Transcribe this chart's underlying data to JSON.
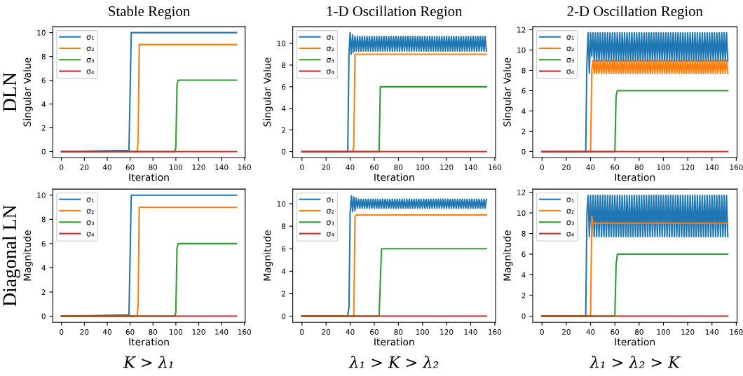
{
  "chart_data": [
    {
      "type": "line",
      "title": "Stable Region",
      "ylabel": "Singular Value",
      "xlabel": "Iteration",
      "annotations": [
        "DLN"
      ],
      "xlim": [
        -7.65,
        160.65
      ],
      "xticks": [
        0,
        20,
        40,
        60,
        80,
        100,
        120,
        140,
        160
      ],
      "ylim": [
        -0.5,
        10.5
      ],
      "yticks": [
        0,
        2,
        4,
        6,
        8,
        10
      ],
      "legend": "top left",
      "series": [
        {
          "name": "σ₁",
          "color": "#1f77b4",
          "x": [
            0,
            59,
            60,
            61,
            153
          ],
          "values": [
            0,
            0.1,
            5,
            10,
            10
          ]
        },
        {
          "name": "σ₂",
          "color": "#ff7f0e",
          "x": [
            0,
            66,
            67,
            68,
            153
          ],
          "values": [
            0,
            0,
            0.8,
            9,
            9
          ]
        },
        {
          "name": "σ₃",
          "color": "#2ca02c",
          "x": [
            0,
            99,
            100,
            101,
            102,
            153
          ],
          "values": [
            0,
            0,
            0.3,
            5.6,
            6,
            6
          ]
        },
        {
          "name": "σ₄",
          "color": "#d62728",
          "x": [
            0,
            153
          ],
          "values": [
            0,
            0
          ]
        }
      ]
    },
    {
      "type": "line",
      "title": "1-D Oscillation Region",
      "ylabel": "Singular Value",
      "xlabel": "Iteration",
      "xlim": [
        -7.65,
        160.65
      ],
      "xticks": [
        0,
        20,
        40,
        60,
        80,
        100,
        120,
        140,
        160
      ],
      "ylim": [
        -0.55,
        11.55
      ],
      "yticks": [
        0,
        2,
        4,
        6,
        8,
        10
      ],
      "legend": "top left",
      "series": [
        {
          "name": "σ₁",
          "color": "#1f77b4",
          "x": [
            0,
            38,
            39,
            40,
            41,
            42,
            43,
            44,
            45,
            46,
            47,
            48,
            49,
            50,
            51,
            52,
            53,
            54,
            55,
            56,
            57,
            58,
            59,
            60,
            61,
            62,
            63,
            64,
            65,
            66,
            67,
            68,
            69,
            70,
            71,
            72,
            73,
            74,
            75,
            76,
            77,
            78,
            79,
            80,
            81,
            82,
            83,
            84,
            85,
            86,
            87,
            88,
            89,
            90,
            91,
            92,
            93,
            94,
            95,
            96,
            97,
            98,
            99,
            100,
            101,
            102,
            103,
            104,
            105,
            106,
            107,
            108,
            109,
            110,
            111,
            112,
            113,
            114,
            115,
            116,
            117,
            118,
            119,
            120,
            121,
            122,
            123,
            124,
            125,
            126,
            127,
            128,
            129,
            130,
            131,
            132,
            133,
            134,
            135,
            136,
            137,
            138,
            139,
            140,
            141,
            142,
            143,
            144,
            145,
            146,
            147,
            148,
            149,
            150,
            151,
            152,
            153
          ],
          "values": [
            0,
            0,
            9.0,
            11.0,
            9.0,
            10.8,
            9.2,
            10.65,
            9.3,
            10.65,
            9.3,
            10.65,
            9.3,
            10.65,
            9.3,
            10.65,
            9.3,
            10.65,
            9.3,
            10.65,
            9.3,
            10.65,
            9.3,
            10.65,
            9.3,
            10.65,
            9.3,
            10.65,
            9.3,
            10.65,
            9.3,
            10.65,
            9.3,
            10.65,
            9.3,
            10.65,
            9.3,
            10.65,
            9.3,
            10.65,
            9.3,
            10.65,
            9.3,
            10.65,
            9.3,
            10.65,
            9.3,
            10.65,
            9.3,
            10.65,
            9.3,
            10.65,
            9.3,
            10.65,
            9.3,
            10.65,
            9.3,
            10.65,
            9.3,
            10.65,
            9.3,
            10.65,
            9.3,
            10.65,
            9.3,
            10.65,
            9.3,
            10.65,
            9.3,
            10.65,
            9.3,
            10.65,
            9.3,
            10.65,
            9.3,
            10.65,
            9.3,
            10.65,
            9.3,
            10.65,
            9.3,
            10.65,
            9.3,
            10.65,
            9.3,
            10.65,
            9.3,
            10.65,
            9.3,
            10.65,
            9.3,
            10.65,
            9.3,
            10.65,
            9.3,
            10.65,
            9.3,
            10.65,
            9.3,
            10.65,
            9.3,
            10.65,
            9.3,
            10.65,
            9.3,
            10.65,
            9.3,
            10.65,
            9.3,
            10.65,
            9.3,
            10.65,
            9.3,
            10.65,
            9.3,
            10.65,
            9.3
          ]
        },
        {
          "name": "σ₂",
          "color": "#ff7f0e",
          "x": [
            0,
            42,
            43,
            44,
            153
          ],
          "values": [
            0,
            0,
            0.5,
            9,
            9
          ]
        },
        {
          "name": "σ₃",
          "color": "#2ca02c",
          "x": [
            0,
            64,
            65,
            153
          ],
          "values": [
            0,
            0,
            6,
            6
          ]
        },
        {
          "name": "σ₄",
          "color": "#d62728",
          "x": [
            0,
            153
          ],
          "values": [
            0,
            0
          ]
        }
      ]
    },
    {
      "type": "line",
      "title": "2-D Oscillation Region",
      "ylabel": "Singular Value",
      "xlabel": "Iteration",
      "xlim": [
        -7.65,
        160.65
      ],
      "xticks": [
        0,
        20,
        40,
        60,
        80,
        100,
        120,
        140,
        160
      ],
      "ylim": [
        -0.59,
        12.3
      ],
      "yticks": [
        0,
        2,
        4,
        6,
        8,
        10,
        12
      ],
      "legend": "top left",
      "series": [
        {
          "name": "σ₁",
          "color": "#1f77b4",
          "x": [
            0,
            36,
            37,
            38,
            39,
            40,
            41,
            42,
            43,
            44,
            45,
            46,
            47,
            48,
            49,
            50,
            51,
            52,
            53,
            54,
            55,
            56,
            57,
            58,
            59,
            60,
            61,
            62,
            63,
            64,
            65,
            66,
            67,
            68,
            69,
            70,
            71,
            72,
            73,
            74,
            75,
            76,
            77,
            78,
            79,
            80,
            81,
            82,
            83,
            84,
            85,
            86,
            87,
            88,
            89,
            90,
            91,
            92,
            93,
            94,
            95,
            96,
            97,
            98,
            99,
            100,
            101,
            102,
            103,
            104,
            105,
            106,
            107,
            108,
            109,
            110,
            111,
            112,
            113,
            114,
            115,
            116,
            117,
            118,
            119,
            120,
            121,
            122,
            123,
            124,
            125,
            126,
            127,
            128,
            129,
            130,
            131,
            132,
            133,
            134,
            135,
            136,
            137,
            138,
            139,
            140,
            141,
            142,
            143,
            144,
            145,
            146,
            147,
            148,
            149,
            150,
            151,
            152,
            153
          ],
          "values": [
            0,
            0,
            9.0,
            11.7,
            7.7,
            11.7,
            9.4,
            11.7,
            8.9,
            11.7,
            8.9,
            11.7,
            8.9,
            11.7,
            8.9,
            11.7,
            8.9,
            11.7,
            8.9,
            11.7,
            8.9,
            11.7,
            8.9,
            11.7,
            8.9,
            11.7,
            8.9,
            11.7,
            8.9,
            11.7,
            8.9,
            11.7,
            8.9,
            11.7,
            8.9,
            11.7,
            8.9,
            11.7,
            8.9,
            11.7,
            8.9,
            11.7,
            8.9,
            11.7,
            8.9,
            11.7,
            8.9,
            11.7,
            8.9,
            11.7,
            8.9,
            11.7,
            8.9,
            11.7,
            8.9,
            11.7,
            8.9,
            11.7,
            8.9,
            11.7,
            8.9,
            11.7,
            8.9,
            11.7,
            8.9,
            11.7,
            8.9,
            11.7,
            8.9,
            11.7,
            8.9,
            11.7,
            8.9,
            11.7,
            8.9,
            11.7,
            8.9,
            11.7,
            8.9,
            11.7,
            8.9,
            11.7,
            8.9,
            11.7,
            8.9,
            11.7,
            8.9,
            11.7,
            8.9,
            11.7,
            8.9,
            11.7,
            8.9,
            11.7,
            8.9,
            11.7,
            8.9,
            11.7,
            8.9,
            11.7,
            8.9,
            11.7,
            8.9,
            11.7,
            8.9,
            11.7,
            8.9,
            11.7,
            8.9,
            11.7,
            8.9,
            11.7,
            8.9,
            11.7,
            8.9,
            11.7,
            8.9,
            11.7,
            8.9
          ]
        },
        {
          "name": "σ₂",
          "color": "#ff7f0e",
          "x": [
            0,
            40,
            41,
            42,
            43,
            44,
            45,
            46,
            47,
            48,
            49,
            50,
            51,
            52,
            53,
            54,
            55,
            56,
            57,
            58,
            59,
            60,
            61,
            62,
            63,
            64,
            65,
            66,
            67,
            68,
            69,
            70,
            71,
            72,
            73,
            74,
            75,
            76,
            77,
            78,
            79,
            80,
            81,
            82,
            83,
            84,
            85,
            86,
            87,
            88,
            89,
            90,
            91,
            92,
            93,
            94,
            95,
            96,
            97,
            98,
            99,
            100,
            101,
            102,
            103,
            104,
            105,
            106,
            107,
            108,
            109,
            110,
            111,
            112,
            113,
            114,
            115,
            116,
            117,
            118,
            119,
            120,
            121,
            122,
            123,
            124,
            125,
            126,
            127,
            128,
            129,
            130,
            131,
            132,
            133,
            134,
            135,
            136,
            137,
            138,
            139,
            140,
            141,
            142,
            143,
            144,
            145,
            146,
            147,
            148,
            149,
            150,
            151,
            152,
            153
          ],
          "values": [
            0,
            0,
            8.0,
            9.0,
            7.7,
            9.0,
            7.7,
            9.0,
            7.7,
            9.0,
            7.7,
            9.0,
            7.7,
            9.0,
            7.7,
            9.0,
            7.7,
            9.0,
            7.7,
            9.0,
            7.7,
            9.0,
            7.7,
            9.0,
            7.7,
            9.0,
            7.7,
            9.0,
            7.7,
            9.0,
            7.7,
            9.0,
            7.7,
            9.0,
            7.7,
            9.0,
            7.7,
            9.0,
            7.7,
            9.0,
            7.7,
            9.0,
            7.7,
            9.0,
            7.7,
            9.0,
            7.7,
            9.0,
            7.7,
            9.0,
            7.7,
            9.0,
            7.7,
            9.0,
            7.7,
            9.0,
            7.7,
            9.0,
            7.7,
            9.0,
            7.7,
            9.0,
            7.7,
            9.0,
            7.7,
            9.0,
            7.7,
            9.0,
            7.7,
            9.0,
            7.7,
            9.0,
            7.7,
            9.0,
            7.7,
            9.0,
            7.7,
            9.0,
            7.7,
            9.0,
            7.7,
            9.0,
            7.7,
            9.0,
            7.7,
            9.0,
            7.7,
            9.0,
            7.7,
            9.0,
            7.7,
            9.0,
            7.7,
            9.0,
            7.7,
            9.0,
            7.7,
            9.0,
            7.7,
            9.0,
            7.7,
            9.0,
            7.7,
            9.0,
            7.7,
            9.0,
            7.7,
            9.0,
            7.7,
            9.0,
            7.7,
            9.0,
            7.7,
            9.0,
            7.7
          ]
        },
        {
          "name": "σ₃",
          "color": "#2ca02c",
          "x": [
            0,
            60,
            61,
            62,
            153
          ],
          "values": [
            0,
            0,
            5.5,
            6,
            6
          ]
        },
        {
          "name": "σ₄",
          "color": "#d62728",
          "x": [
            0,
            153
          ],
          "values": [
            0,
            0
          ]
        }
      ]
    },
    {
      "type": "line",
      "ylabel": "Magnitude",
      "xlabel": "Iteration",
      "annotations": [
        "Diagonal LN",
        "K > λ₁"
      ],
      "xlim": [
        -7.65,
        160.65
      ],
      "xticks": [
        0,
        20,
        40,
        60,
        80,
        100,
        120,
        140,
        160
      ],
      "ylim": [
        -0.5,
        10.5
      ],
      "yticks": [
        0,
        2,
        4,
        6,
        8,
        10
      ],
      "legend": "top left",
      "series": [
        {
          "name": "σ₁",
          "color": "#1f77b4",
          "x": [
            0,
            59,
            60,
            61,
            153
          ],
          "values": [
            0,
            0.1,
            5,
            10,
            10
          ]
        },
        {
          "name": "σ₂",
          "color": "#ff7f0e",
          "x": [
            0,
            66,
            67,
            68,
            153
          ],
          "values": [
            0,
            0,
            0.8,
            9,
            9
          ]
        },
        {
          "name": "σ₃",
          "color": "#2ca02c",
          "x": [
            0,
            99,
            100,
            101,
            102,
            153
          ],
          "values": [
            0,
            0,
            0.3,
            5.6,
            6,
            6
          ]
        },
        {
          "name": "σ₄",
          "color": "#d62728",
          "x": [
            0,
            153
          ],
          "values": [
            0,
            0
          ]
        }
      ]
    },
    {
      "type": "line",
      "ylabel": "Magnitude",
      "xlabel": "Iteration",
      "annotations": [
        "λ₁ > K > λ₂"
      ],
      "xlim": [
        -7.65,
        160.65
      ],
      "xticks": [
        0,
        20,
        40,
        60,
        80,
        100,
        120,
        140,
        160
      ],
      "ylim": [
        -0.54,
        11.3
      ],
      "yticks": [
        0,
        2,
        4,
        6,
        8,
        10
      ],
      "legend": "top left",
      "series": [
        {
          "name": "σ₁",
          "color": "#1f77b4",
          "x": [
            0,
            38,
            39,
            40,
            41,
            42,
            43,
            44,
            45,
            46,
            47,
            48,
            49,
            50,
            51,
            52,
            53,
            54,
            55,
            56,
            57,
            58,
            59,
            60,
            61,
            62,
            63,
            64,
            65,
            66,
            67,
            68,
            69,
            70,
            71,
            72,
            73,
            74,
            75,
            76,
            77,
            78,
            79,
            80,
            81,
            82,
            83,
            84,
            85,
            86,
            87,
            88,
            89,
            90,
            91,
            92,
            93,
            94,
            95,
            96,
            97,
            98,
            99,
            100,
            101,
            102,
            103,
            104,
            105,
            106,
            107,
            108,
            109,
            110,
            111,
            112,
            113,
            114,
            115,
            116,
            117,
            118,
            119,
            120,
            121,
            122,
            123,
            124,
            125,
            126,
            127,
            128,
            129,
            130,
            131,
            132,
            133,
            134,
            135,
            136,
            137,
            138,
            139,
            140,
            141,
            142,
            143,
            144,
            145,
            146,
            147,
            148,
            149,
            150,
            151,
            152,
            153
          ],
          "values": [
            0,
            0,
            0.8,
            9.2,
            10.7,
            9.3,
            10.6,
            9.4,
            10.5,
            9.6,
            10.4,
            9.6,
            10.4,
            9.6,
            10.4,
            9.6,
            10.4,
            9.6,
            10.4,
            9.6,
            10.4,
            9.6,
            10.4,
            9.6,
            10.4,
            9.6,
            10.4,
            9.6,
            10.4,
            9.6,
            10.4,
            9.6,
            10.4,
            9.6,
            10.4,
            9.6,
            10.4,
            9.6,
            10.4,
            9.6,
            10.4,
            9.6,
            10.4,
            9.6,
            10.4,
            9.6,
            10.4,
            9.6,
            10.4,
            9.6,
            10.4,
            9.6,
            10.4,
            9.6,
            10.4,
            9.6,
            10.4,
            9.6,
            10.4,
            9.6,
            10.4,
            9.6,
            10.4,
            9.6,
            10.4,
            9.6,
            10.4,
            9.6,
            10.4,
            9.6,
            10.4,
            9.6,
            10.4,
            9.6,
            10.4,
            9.6,
            10.4,
            9.6,
            10.4,
            9.6,
            10.4,
            9.6,
            10.4,
            9.6,
            10.4,
            9.6,
            10.4,
            9.6,
            10.4,
            9.6,
            10.4,
            9.6,
            10.4,
            9.6,
            10.4,
            9.6,
            10.4,
            9.6,
            10.4,
            9.6,
            10.4,
            9.6,
            10.4,
            9.6,
            10.4,
            9.6,
            10.4,
            9.6,
            10.4,
            9.6,
            10.4,
            9.6,
            10.4,
            9.6,
            10.4,
            9.6,
            10.4
          ]
        },
        {
          "name": "σ₂",
          "color": "#ff7f0e",
          "x": [
            0,
            43,
            44,
            45,
            153
          ],
          "values": [
            0,
            0,
            8.8,
            9,
            9
          ]
        },
        {
          "name": "σ₃",
          "color": "#2ca02c",
          "x": [
            0,
            64,
            66,
            153
          ],
          "values": [
            0,
            0,
            6,
            6
          ]
        },
        {
          "name": "σ₄",
          "color": "#d62728",
          "x": [
            0,
            153
          ],
          "values": [
            0,
            0
          ]
        }
      ]
    },
    {
      "type": "line",
      "ylabel": "Magnitude",
      "xlabel": "Iteration",
      "annotations": [
        "λ₁ > λ₂ > K"
      ],
      "xlim": [
        -7.65,
        160.65
      ],
      "xticks": [
        0,
        20,
        40,
        60,
        80,
        100,
        120,
        140,
        160
      ],
      "ylim": [
        -0.59,
        12.3
      ],
      "yticks": [
        0,
        2,
        4,
        6,
        8,
        10,
        12
      ],
      "legend": "top left",
      "series": [
        {
          "name": "σ₁",
          "color": "#1f77b4",
          "x": [
            0,
            36,
            37,
            38,
            39,
            40,
            41,
            42,
            43,
            44,
            45,
            46,
            47,
            48,
            49,
            50,
            51,
            52,
            53,
            54,
            55,
            56,
            57,
            58,
            59,
            60,
            61,
            62,
            63,
            64,
            65,
            66,
            67,
            68,
            69,
            70,
            71,
            72,
            73,
            74,
            75,
            76,
            77,
            78,
            79,
            80,
            81,
            82,
            83,
            84,
            85,
            86,
            87,
            88,
            89,
            90,
            91,
            92,
            93,
            94,
            95,
            96,
            97,
            98,
            99,
            100,
            101,
            102,
            103,
            104,
            105,
            106,
            107,
            108,
            109,
            110,
            111,
            112,
            113,
            114,
            115,
            116,
            117,
            118,
            119,
            120,
            121,
            122,
            123,
            124,
            125,
            126,
            127,
            128,
            129,
            130,
            131,
            132,
            133,
            134,
            135,
            136,
            137,
            138,
            139,
            140,
            141,
            142,
            143,
            144,
            145,
            146,
            147,
            148,
            149,
            150,
            151,
            152,
            153
          ],
          "values": [
            0,
            0,
            10.0,
            11.7,
            7.7,
            11.7,
            7.7,
            11.7,
            7.7,
            11.7,
            7.7,
            11.7,
            7.7,
            11.7,
            7.7,
            11.7,
            7.7,
            11.7,
            7.7,
            11.7,
            7.7,
            11.7,
            7.7,
            11.7,
            7.7,
            11.7,
            7.7,
            11.7,
            7.7,
            11.7,
            7.7,
            11.7,
            7.7,
            11.7,
            7.7,
            11.7,
            7.7,
            11.7,
            7.7,
            11.7,
            7.7,
            11.7,
            7.7,
            11.7,
            7.7,
            11.7,
            7.7,
            11.7,
            7.7,
            11.7,
            7.7,
            11.7,
            7.7,
            11.7,
            7.7,
            11.7,
            7.7,
            11.7,
            7.7,
            11.7,
            7.7,
            11.7,
            7.7,
            11.7,
            7.7,
            11.7,
            7.7,
            11.7,
            7.7,
            11.7,
            7.7,
            11.7,
            7.7,
            11.7,
            7.7,
            11.7,
            7.7,
            11.7,
            7.7,
            11.7,
            7.7,
            11.7,
            7.7,
            11.7,
            7.7,
            11.7,
            7.7,
            11.7,
            7.7,
            11.7,
            7.7,
            11.7,
            7.7,
            11.7,
            7.7,
            11.7,
            7.7,
            11.7,
            7.7,
            11.7,
            7.7,
            11.7,
            7.7,
            11.7,
            7.7,
            11.7,
            7.7,
            11.7,
            7.7,
            11.7,
            7.7,
            11.7,
            7.7,
            11.7,
            7.7,
            11.7,
            7.7,
            11.7,
            7.7
          ]
        },
        {
          "name": "σ₂",
          "color": "#ff7f0e",
          "x": [
            0,
            40,
            41,
            42,
            43,
            153
          ],
          "values": [
            0,
            0,
            9.7,
            8.9,
            9.0,
            9.0
          ]
        },
        {
          "name": "σ₃",
          "color": "#2ca02c",
          "x": [
            0,
            60,
            61,
            62,
            153
          ],
          "values": [
            0,
            0,
            5,
            6,
            6
          ]
        },
        {
          "name": "σ₄",
          "color": "#d62728",
          "x": [
            0,
            153
          ],
          "values": [
            0,
            0
          ]
        }
      ]
    }
  ]
}
